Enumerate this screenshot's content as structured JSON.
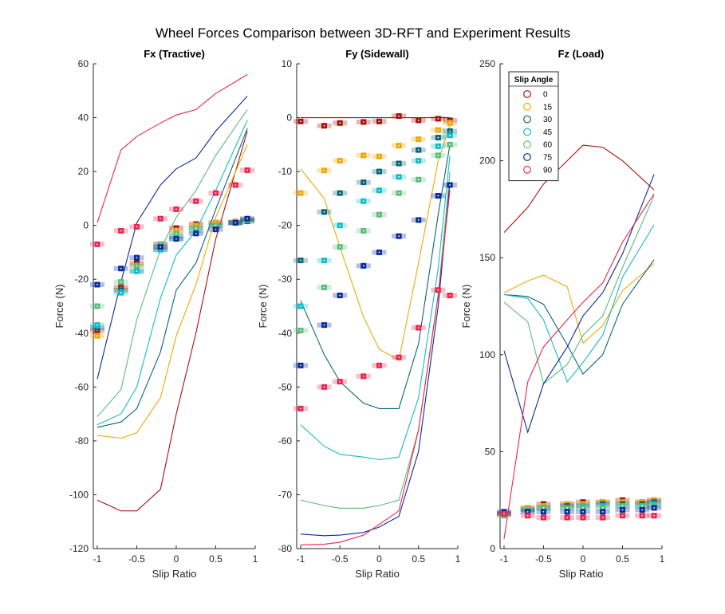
{
  "figure_title": "Wheel Forces Comparison between 3D-RFT and Experiment Results",
  "legend": {
    "title": "Slip Angle",
    "placement": "top-left of Fz panel",
    "entries": [
      {
        "label": "0",
        "color": "#a81010"
      },
      {
        "label": "15",
        "color": "#f0a808"
      },
      {
        "label": "30",
        "color": "#0a6478"
      },
      {
        "label": "45",
        "color": "#12bcc8"
      },
      {
        "label": "60",
        "color": "#5cbc7c"
      },
      {
        "label": "75",
        "color": "#0a2c96"
      },
      {
        "label": "90",
        "color": "#ee2450"
      }
    ]
  },
  "chart_data": [
    {
      "type": "line",
      "title": "Fx (Tractive)",
      "xlabel": "Slip Ratio",
      "ylabel": "Force (N)",
      "xlim": [
        -1.05,
        1.0
      ],
      "ylim": [
        -120,
        60
      ],
      "xticks": [
        -1,
        -0.5,
        0,
        0.5,
        1
      ],
      "xtick_labels": [
        "-1",
        "-0.5",
        "0",
        "0.5",
        "1"
      ],
      "yticks": [
        -120,
        -100,
        -80,
        -60,
        -40,
        -20,
        0,
        20,
        40,
        60
      ],
      "ytick_labels": [
        "-120",
        "-100",
        "-80",
        "-60",
        "-40",
        "-20",
        "0",
        "20",
        "40",
        "60"
      ],
      "lines": [
        {
          "name": "0",
          "x": [
            -1,
            -0.7,
            -0.5,
            -0.2,
            0,
            0.25,
            0.5,
            0.9
          ],
          "y": [
            -102,
            -106,
            -106,
            -98,
            -70,
            -40,
            -5,
            35
          ]
        },
        {
          "name": "15",
          "x": [
            -1,
            -0.7,
            -0.5,
            -0.2,
            0,
            0.25,
            0.5,
            0.9
          ],
          "y": [
            -78,
            -79,
            -77,
            -64,
            -41,
            -22,
            3,
            30
          ]
        },
        {
          "name": "30",
          "x": [
            -1,
            -0.7,
            -0.5,
            -0.2,
            0,
            0.25,
            0.5,
            0.9
          ],
          "y": [
            -75,
            -73,
            -68,
            -47,
            -24,
            -14,
            6,
            36
          ]
        },
        {
          "name": "45",
          "x": [
            -1,
            -0.7,
            -0.5,
            -0.2,
            0,
            0.25,
            0.5,
            0.9
          ],
          "y": [
            -74,
            -70,
            -60,
            -27,
            -11,
            -2,
            13,
            39
          ]
        },
        {
          "name": "60",
          "x": [
            -1,
            -0.7,
            -0.5,
            -0.2,
            0,
            0.25,
            0.5,
            0.9
          ],
          "y": [
            -71,
            -61,
            -35,
            -9,
            3,
            13,
            26,
            43
          ]
        },
        {
          "name": "75",
          "x": [
            -1,
            -0.7,
            -0.5,
            -0.2,
            0,
            0.25,
            0.5,
            0.9
          ],
          "y": [
            -57,
            -21,
            1,
            15,
            21,
            25,
            35,
            48
          ]
        },
        {
          "name": "90",
          "x": [
            -1,
            -0.7,
            -0.5,
            -0.2,
            0,
            0.25,
            0.5,
            0.9
          ],
          "y": [
            1,
            28,
            33,
            38,
            41,
            43,
            49,
            56
          ]
        }
      ],
      "points": [
        {
          "name": "0",
          "x": [
            -1,
            -0.7,
            -0.5,
            -0.2,
            0,
            0.25,
            0.5,
            0.75,
            0.9
          ],
          "y": [
            -39,
            -23,
            -14,
            -7,
            -1,
            0.5,
            1,
            1,
            2
          ]
        },
        {
          "name": "15",
          "x": [
            -1,
            -0.7,
            -0.5,
            -0.2,
            0,
            0.25,
            0.5,
            0.75,
            0.9
          ],
          "y": [
            -41,
            -24,
            -15,
            -8,
            -2,
            0,
            1,
            1.5,
            2
          ]
        },
        {
          "name": "30",
          "x": [
            -1,
            -0.7,
            -0.5,
            -0.2,
            0,
            0.25,
            0.5,
            0.75,
            0.9
          ],
          "y": [
            -38,
            -24,
            -17,
            -9,
            -4,
            -1,
            0,
            1,
            1.5
          ]
        },
        {
          "name": "45",
          "x": [
            -1,
            -0.7,
            -0.5,
            -0.2,
            0,
            0.25,
            0.5,
            0.75,
            0.9
          ],
          "y": [
            -37,
            -25,
            -17,
            -9,
            -5,
            -2,
            0,
            1,
            2
          ]
        },
        {
          "name": "60",
          "x": [
            -1,
            -0.7,
            -0.5,
            -0.2,
            0,
            0.25,
            0.5,
            0.75,
            0.9
          ],
          "y": [
            -30,
            -21,
            -15,
            -7,
            -3,
            -1,
            0,
            1,
            2
          ]
        },
        {
          "name": "75",
          "x": [
            -1,
            -0.7,
            -0.5,
            -0.2,
            0,
            0.25,
            0.5,
            0.75,
            0.9
          ],
          "y": [
            -22,
            -16,
            -12,
            -8,
            -5,
            -3,
            -1.5,
            1,
            2.5
          ]
        },
        {
          "name": "90",
          "x": [
            -1,
            -0.7,
            -0.5,
            -0.2,
            0,
            0.25,
            0.5,
            0.75,
            0.9
          ],
          "y": [
            -7,
            -2,
            -0.5,
            2.5,
            6,
            9,
            12,
            15,
            20.5
          ]
        }
      ]
    },
    {
      "type": "line",
      "title": "Fy (Sidewall)",
      "xlabel": "Slip Ratio",
      "ylabel": "Force (N)",
      "xlim": [
        -1.05,
        1.0
      ],
      "ylim": [
        -80,
        10
      ],
      "xticks": [
        -1,
        -0.5,
        0,
        0.5,
        1
      ],
      "xtick_labels": [
        "-1",
        "-0.5",
        "0",
        "0.5",
        "1"
      ],
      "yticks": [
        -80,
        -70,
        -60,
        -50,
        -40,
        -30,
        -20,
        -10,
        0,
        10
      ],
      "ytick_labels": [
        "-80",
        "-70",
        "-60",
        "-50",
        "-40",
        "-30",
        "-20",
        "-10",
        "0",
        "10"
      ],
      "lines": [
        {
          "name": "0",
          "x": [
            -1,
            -0.7,
            -0.5,
            -0.2,
            0,
            0.25,
            0.5,
            0.75,
            0.9
          ],
          "y": [
            0,
            0,
            0,
            0,
            0,
            0,
            0,
            0,
            0
          ]
        },
        {
          "name": "15",
          "x": [
            -1,
            -0.7,
            -0.5,
            -0.2,
            0,
            0.25,
            0.5,
            0.75,
            0.9
          ],
          "y": [
            -9.5,
            -15,
            -24,
            -37,
            -43,
            -45,
            -27,
            -8,
            -1.5
          ]
        },
        {
          "name": "30",
          "x": [
            -1,
            -0.7,
            -0.5,
            -0.2,
            0,
            0.25,
            0.5,
            0.75,
            0.9
          ],
          "y": [
            -34,
            -44,
            -49,
            -53,
            -54,
            -54,
            -42,
            -18,
            -5
          ]
        },
        {
          "name": "45",
          "x": [
            -1,
            -0.7,
            -0.5,
            -0.2,
            0,
            0.25,
            0.5,
            0.75,
            0.9
          ],
          "y": [
            -57,
            -61,
            -62.5,
            -63,
            -63.5,
            -63,
            -52,
            -28,
            -7
          ]
        },
        {
          "name": "60",
          "x": [
            -1,
            -0.7,
            -0.5,
            -0.2,
            0,
            0.25,
            0.5,
            0.75,
            0.9
          ],
          "y": [
            -71,
            -72,
            -72.5,
            -72.5,
            -72,
            -71,
            -58,
            -33,
            -10
          ]
        },
        {
          "name": "75",
          "x": [
            -1,
            -0.7,
            -0.5,
            -0.2,
            0,
            0.25,
            0.5,
            0.75,
            0.9
          ],
          "y": [
            -77.3,
            -77.6,
            -77.5,
            -77,
            -76,
            -74,
            -62,
            -35,
            -12
          ]
        },
        {
          "name": "90",
          "x": [
            -1,
            -0.7,
            -0.5,
            -0.2,
            0,
            0.25,
            0.5,
            0.75,
            0.9
          ],
          "y": [
            -79.3,
            -79.2,
            -78.8,
            -77.5,
            -75.5,
            -73,
            -58,
            -33,
            -13.5
          ]
        }
      ],
      "points": [
        {
          "name": "0",
          "x": [
            -1,
            -0.7,
            -0.5,
            -0.2,
            0,
            0.25,
            0.5,
            0.75,
            0.9
          ],
          "y": [
            -0.7,
            -1.5,
            -1,
            -0.8,
            -0.7,
            0.3,
            -0.5,
            -0.2,
            -0.5
          ]
        },
        {
          "name": "15",
          "x": [
            -1,
            -0.7,
            -0.5,
            -0.2,
            0,
            0.25,
            0.5,
            0.75,
            0.9
          ],
          "y": [
            -14,
            -9.8,
            -8,
            -7,
            -7.2,
            -5.2,
            -4,
            -2.3,
            -1
          ]
        },
        {
          "name": "30",
          "x": [
            -1,
            -0.7,
            -0.5,
            -0.2,
            0,
            0.25,
            0.5,
            0.75,
            0.9
          ],
          "y": [
            -26.5,
            -17.5,
            -14,
            -12,
            -10,
            -8.5,
            -6,
            -3.7,
            -2.5
          ]
        },
        {
          "name": "45",
          "x": [
            -1,
            -0.7,
            -0.5,
            -0.2,
            0,
            0.25,
            0.5,
            0.75,
            0.9
          ],
          "y": [
            -35,
            -26.5,
            -20,
            -15.5,
            -13.5,
            -11,
            -8,
            -5.3,
            -3.3
          ]
        },
        {
          "name": "60",
          "x": [
            -1,
            -0.7,
            -0.5,
            -0.2,
            0,
            0.25,
            0.5,
            0.75,
            0.9
          ],
          "y": [
            -39.5,
            -31.5,
            -24,
            -21,
            -18,
            -14,
            -11.5,
            -7,
            -5
          ]
        },
        {
          "name": "75",
          "x": [
            -1,
            -0.7,
            -0.5,
            -0.2,
            0,
            0.25,
            0.5,
            0.75,
            0.9
          ],
          "y": [
            -46,
            -38.5,
            -33,
            -27.5,
            -25,
            -22,
            -19,
            -14.5,
            -12.5
          ]
        },
        {
          "name": "90",
          "x": [
            -1,
            -0.7,
            -0.5,
            -0.2,
            0,
            0.25,
            0.5,
            0.75,
            0.9
          ],
          "y": [
            -54,
            -50,
            -49,
            -48,
            -46,
            -44.5,
            -39,
            -32,
            -33
          ]
        }
      ]
    },
    {
      "type": "line",
      "title": "Fz (Load)",
      "xlabel": "Slip Ratio",
      "ylabel": "Force (N)",
      "xlim": [
        -1.05,
        1.0
      ],
      "ylim": [
        0,
        250
      ],
      "xticks": [
        -1,
        -0.5,
        0,
        0.5,
        1
      ],
      "xtick_labels": [
        "-1",
        "-0.5",
        "0",
        "0.5",
        "1"
      ],
      "yticks": [
        0,
        50,
        100,
        150,
        200,
        250
      ],
      "ytick_labels": [
        "0",
        "50",
        "100",
        "150",
        "200",
        "250"
      ],
      "lines": [
        {
          "name": "0",
          "x": [
            -1,
            -0.7,
            -0.5,
            -0.2,
            0,
            0.25,
            0.5,
            0.9
          ],
          "y": [
            163,
            176,
            188,
            200,
            208,
            207,
            200,
            185
          ]
        },
        {
          "name": "15",
          "x": [
            -1,
            -0.7,
            -0.5,
            -0.2,
            0,
            0.25,
            0.5,
            0.9
          ],
          "y": [
            132,
            138,
            141,
            135,
            106,
            115,
            133,
            147
          ]
        },
        {
          "name": "30",
          "x": [
            -1,
            -0.7,
            -0.5,
            -0.2,
            0,
            0.25,
            0.5,
            0.9
          ],
          "y": [
            131,
            130,
            126,
            105,
            90,
            100,
            126,
            149
          ]
        },
        {
          "name": "45",
          "x": [
            -1,
            -0.7,
            -0.5,
            -0.2,
            0,
            0.25,
            0.5,
            0.9
          ],
          "y": [
            131,
            129,
            118,
            86,
            96,
            110,
            140,
            167
          ]
        },
        {
          "name": "60",
          "x": [
            -1,
            -0.7,
            -0.5,
            -0.2,
            0,
            0.25,
            0.5,
            0.9
          ],
          "y": [
            127,
            117,
            85,
            95,
            110,
            120,
            145,
            182
          ]
        },
        {
          "name": "75",
          "x": [
            -1,
            -0.7,
            -0.5,
            -0.2,
            0,
            0.25,
            0.5,
            0.9
          ],
          "y": [
            102,
            60,
            85,
            104,
            120,
            132,
            152,
            193
          ]
        },
        {
          "name": "90",
          "x": [
            -1,
            -0.7,
            -0.5,
            -0.2,
            0,
            0.25,
            0.5,
            0.9
          ],
          "y": [
            5,
            86,
            104,
            118,
            127,
            137,
            158,
            183
          ]
        }
      ],
      "points": [
        {
          "name": "0",
          "x": [
            -1,
            -0.7,
            -0.5,
            -0.2,
            0,
            0.25,
            0.5,
            0.75,
            0.9
          ],
          "y": [
            18,
            21,
            23,
            23,
            24,
            24,
            25,
            24,
            25
          ]
        },
        {
          "name": "15",
          "x": [
            -1,
            -0.7,
            -0.5,
            -0.2,
            0,
            0.25,
            0.5,
            0.75,
            0.9
          ],
          "y": [
            18,
            21,
            22,
            23,
            23,
            24,
            24,
            24,
            25
          ]
        },
        {
          "name": "30",
          "x": [
            -1,
            -0.7,
            -0.5,
            -0.2,
            0,
            0.25,
            0.5,
            0.75,
            0.9
          ],
          "y": [
            18,
            20,
            21,
            22,
            22,
            23,
            23,
            23,
            24
          ]
        },
        {
          "name": "45",
          "x": [
            -1,
            -0.7,
            -0.5,
            -0.2,
            0,
            0.25,
            0.5,
            0.75,
            0.9
          ],
          "y": [
            18,
            20,
            21,
            21,
            22,
            22,
            22,
            22,
            23
          ]
        },
        {
          "name": "60",
          "x": [
            -1,
            -0.7,
            -0.5,
            -0.2,
            0,
            0.25,
            0.5,
            0.75,
            0.9
          ],
          "y": [
            17,
            20,
            21,
            21,
            21,
            21,
            22,
            22,
            22
          ]
        },
        {
          "name": "75",
          "x": [
            -1,
            -0.7,
            -0.5,
            -0.2,
            0,
            0.25,
            0.5,
            0.75,
            0.9
          ],
          "y": [
            19,
            19,
            19,
            19,
            19,
            19,
            20,
            20,
            21
          ]
        },
        {
          "name": "90",
          "x": [
            -1,
            -0.7,
            -0.5,
            -0.2,
            0,
            0.25,
            0.5,
            0.75,
            0.9
          ],
          "y": [
            18,
            17,
            16,
            16,
            16,
            16,
            17,
            17,
            17
          ]
        }
      ]
    }
  ]
}
